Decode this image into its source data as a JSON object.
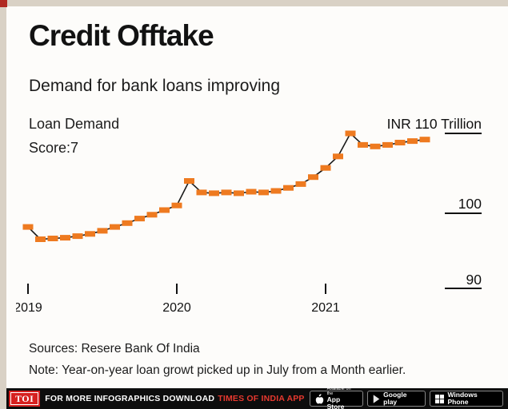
{
  "page": {
    "title": "Credit Offtake",
    "subtitle": "Demand for bank loans improving",
    "series_label_line1": "Loan Demand",
    "series_label_line2": "Score:7",
    "sources": "Sources: Resere Bank Of India",
    "note": "Note: Year-on-year loan growt picked up in July from a Month earlier."
  },
  "chart_data": {
    "type": "line",
    "title": "Loan Demand Score:7",
    "unit": "INR Trillion",
    "ylim": [
      88,
      112
    ],
    "line_color": "#1a1a1a",
    "marker_color": "#ee7a20",
    "x_tick_labels": [
      {
        "index": 0,
        "label": "2019"
      },
      {
        "index": 12,
        "label": "2020"
      },
      {
        "index": 24,
        "label": "2021"
      }
    ],
    "values": [
      97.8,
      96.2,
      96.3,
      96.4,
      96.6,
      96.9,
      97.3,
      97.8,
      98.3,
      98.9,
      99.4,
      100.0,
      100.6,
      103.8,
      102.3,
      102.2,
      102.3,
      102.2,
      102.4,
      102.3,
      102.5,
      102.9,
      103.4,
      104.3,
      105.5,
      107.0,
      110.0,
      108.5,
      108.3,
      108.5,
      108.8,
      109.0,
      109.2
    ],
    "gridlines": [
      {
        "value": 110,
        "label": "INR 110 Trillion"
      },
      {
        "value": 100,
        "label": "100"
      },
      {
        "value": 90,
        "label": "90"
      }
    ]
  },
  "footer": {
    "logo": "TOI",
    "text_white": "FOR MORE  INFOGRAPHICS DOWNLOAD",
    "text_red": "TIMES OF INDIA APP",
    "badges": [
      {
        "icon": "apple-icon",
        "line1": "Available on the",
        "line2": "App Store"
      },
      {
        "icon": "google-play-icon",
        "line1": "",
        "line2": "Google play"
      },
      {
        "icon": "windows-icon",
        "line1": "",
        "line2": "Windows Phone"
      }
    ]
  }
}
